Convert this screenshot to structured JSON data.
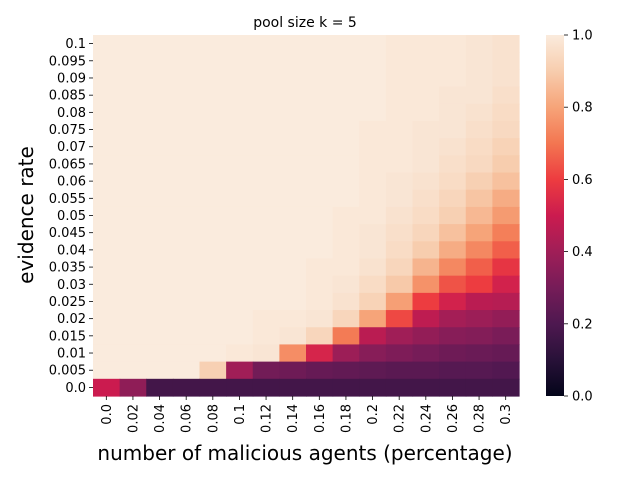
{
  "chart_data": {
    "type": "heatmap",
    "title": "pool size k = 5",
    "xlabel": "number of malicious agents (percentage)",
    "ylabel": "evidence rate",
    "x_categories": [
      "0.0",
      "0.02",
      "0.04",
      "0.06",
      "0.08",
      "0.1",
      "0.12",
      "0.14",
      "0.16",
      "0.18",
      "0.2",
      "0.22",
      "0.24",
      "0.26",
      "0.28",
      "0.3"
    ],
    "y_categories": [
      "0.1",
      "0.095",
      "0.09",
      "0.085",
      "0.08",
      "0.075",
      "0.07",
      "0.065",
      "0.06",
      "0.055",
      "0.05",
      "0.045",
      "0.04",
      "0.035",
      "0.03",
      "0.025",
      "0.02",
      "0.015",
      "0.01",
      "0.005",
      "0.0"
    ],
    "values": [
      [
        1.0,
        1.0,
        1.0,
        1.0,
        1.0,
        1.0,
        1.0,
        1.0,
        1.0,
        1.0,
        1.0,
        0.99,
        0.99,
        0.99,
        0.98,
        0.97
      ],
      [
        1.0,
        1.0,
        1.0,
        1.0,
        1.0,
        1.0,
        1.0,
        1.0,
        1.0,
        1.0,
        1.0,
        0.99,
        0.99,
        0.99,
        0.98,
        0.97
      ],
      [
        1.0,
        1.0,
        1.0,
        1.0,
        1.0,
        1.0,
        1.0,
        1.0,
        1.0,
        1.0,
        1.0,
        0.99,
        0.99,
        0.99,
        0.98,
        0.97
      ],
      [
        1.0,
        1.0,
        1.0,
        1.0,
        1.0,
        1.0,
        1.0,
        1.0,
        1.0,
        1.0,
        1.0,
        0.99,
        0.99,
        0.98,
        0.98,
        0.96
      ],
      [
        1.0,
        1.0,
        1.0,
        1.0,
        1.0,
        1.0,
        1.0,
        1.0,
        1.0,
        1.0,
        1.0,
        0.99,
        0.99,
        0.98,
        0.97,
        0.95
      ],
      [
        1.0,
        1.0,
        1.0,
        1.0,
        1.0,
        1.0,
        1.0,
        1.0,
        1.0,
        1.0,
        0.99,
        0.99,
        0.98,
        0.98,
        0.96,
        0.94
      ],
      [
        1.0,
        1.0,
        1.0,
        1.0,
        1.0,
        1.0,
        1.0,
        1.0,
        1.0,
        1.0,
        0.99,
        0.99,
        0.98,
        0.97,
        0.95,
        0.92
      ],
      [
        1.0,
        1.0,
        1.0,
        1.0,
        1.0,
        1.0,
        1.0,
        1.0,
        1.0,
        1.0,
        0.99,
        0.99,
        0.98,
        0.96,
        0.94,
        0.9
      ],
      [
        1.0,
        1.0,
        1.0,
        1.0,
        1.0,
        1.0,
        1.0,
        1.0,
        1.0,
        1.0,
        0.99,
        0.98,
        0.97,
        0.95,
        0.91,
        0.87
      ],
      [
        1.0,
        1.0,
        1.0,
        1.0,
        1.0,
        1.0,
        1.0,
        1.0,
        1.0,
        1.0,
        0.99,
        0.98,
        0.96,
        0.93,
        0.88,
        0.82
      ],
      [
        1.0,
        1.0,
        1.0,
        1.0,
        1.0,
        1.0,
        1.0,
        1.0,
        1.0,
        0.99,
        0.99,
        0.97,
        0.95,
        0.91,
        0.85,
        0.78
      ],
      [
        1.0,
        1.0,
        1.0,
        1.0,
        1.0,
        1.0,
        1.0,
        1.0,
        1.0,
        0.99,
        0.98,
        0.96,
        0.93,
        0.87,
        0.8,
        0.72
      ],
      [
        1.0,
        1.0,
        1.0,
        1.0,
        1.0,
        1.0,
        1.0,
        1.0,
        1.0,
        0.99,
        0.98,
        0.95,
        0.9,
        0.82,
        0.74,
        0.66
      ],
      [
        1.0,
        1.0,
        1.0,
        1.0,
        1.0,
        1.0,
        1.0,
        1.0,
        0.99,
        0.99,
        0.97,
        0.93,
        0.84,
        0.74,
        0.66,
        0.58
      ],
      [
        1.0,
        1.0,
        1.0,
        1.0,
        1.0,
        1.0,
        1.0,
        1.0,
        0.99,
        0.98,
        0.95,
        0.89,
        0.76,
        0.64,
        0.6,
        0.52
      ],
      [
        1.0,
        1.0,
        1.0,
        1.0,
        1.0,
        1.0,
        1.0,
        1.0,
        0.99,
        0.97,
        0.92,
        0.79,
        0.6,
        0.52,
        0.46,
        0.45
      ],
      [
        1.0,
        1.0,
        1.0,
        1.0,
        1.0,
        1.0,
        0.99,
        0.99,
        0.98,
        0.93,
        0.8,
        0.62,
        0.47,
        0.41,
        0.39,
        0.37
      ],
      [
        1.0,
        1.0,
        1.0,
        1.0,
        1.0,
        1.0,
        0.99,
        0.98,
        0.93,
        0.71,
        0.46,
        0.4,
        0.37,
        0.34,
        0.33,
        0.31
      ],
      [
        1.0,
        1.0,
        1.0,
        1.0,
        1.0,
        0.99,
        0.98,
        0.75,
        0.53,
        0.39,
        0.34,
        0.32,
        0.3,
        0.28,
        0.27,
        0.26
      ],
      [
        1.0,
        1.0,
        1.0,
        1.0,
        0.91,
        0.4,
        0.29,
        0.28,
        0.26,
        0.25,
        0.24,
        0.23,
        0.23,
        0.22,
        0.22,
        0.21
      ],
      [
        0.5,
        0.36,
        0.17,
        0.17,
        0.17,
        0.17,
        0.17,
        0.17,
        0.17,
        0.17,
        0.17,
        0.17,
        0.17,
        0.17,
        0.17,
        0.17
      ]
    ],
    "colorbar": {
      "min": 0.0,
      "max": 1.0,
      "ticks": [
        "0.0",
        "0.2",
        "0.4",
        "0.6",
        "0.8",
        "1.0"
      ],
      "tick_values": [
        0.0,
        0.2,
        0.4,
        0.6,
        0.8,
        1.0
      ]
    },
    "colormap": "rocket",
    "grid": false,
    "legend": "colorbar right"
  }
}
